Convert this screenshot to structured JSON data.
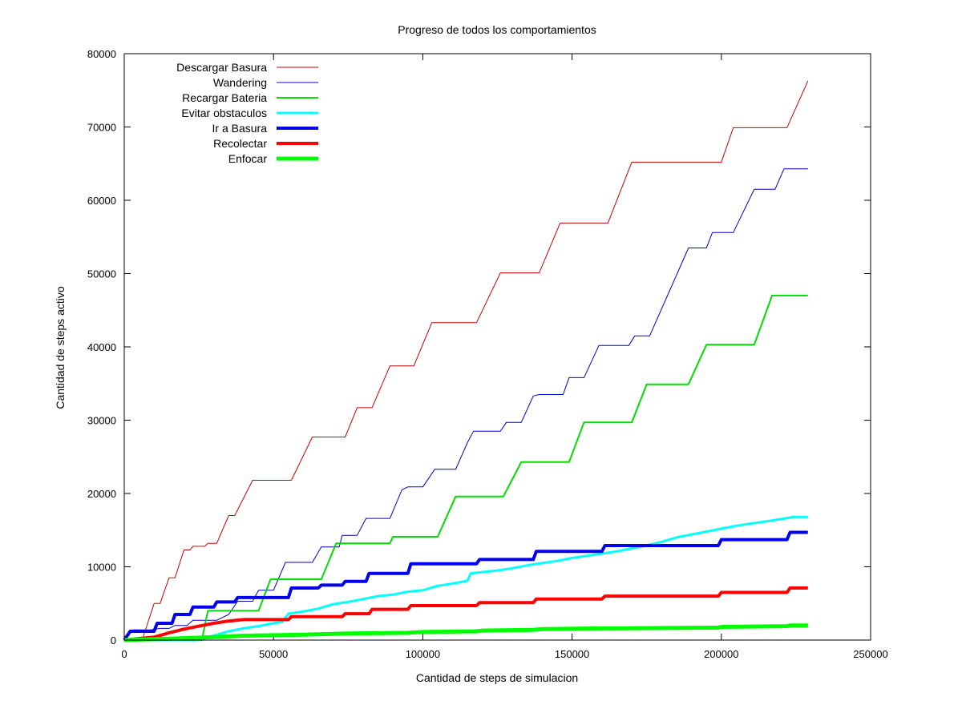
{
  "chart_data": {
    "type": "line",
    "title": "Progreso de todos los comportamientos",
    "xlabel": "Cantidad de steps de simulacion",
    "ylabel": "Cantidad de steps activo",
    "xlim": [
      0,
      250000
    ],
    "ylim": [
      0,
      80000
    ],
    "xticks": [
      0,
      50000,
      100000,
      150000,
      200000,
      250000
    ],
    "yticks": [
      0,
      10000,
      20000,
      30000,
      40000,
      50000,
      60000,
      70000,
      80000
    ],
    "legend_position": "top-left",
    "series": [
      {
        "name": "Descargar Basura",
        "color": "#cc0000",
        "weight": 1,
        "points": [
          [
            0,
            0
          ],
          [
            6000,
            0
          ],
          [
            10000,
            5000
          ],
          [
            12000,
            5000
          ],
          [
            15000,
            8500
          ],
          [
            17000,
            8500
          ],
          [
            20000,
            12300
          ],
          [
            22000,
            12300
          ],
          [
            23000,
            12800
          ],
          [
            27000,
            12800
          ],
          [
            28000,
            13200
          ],
          [
            31000,
            13200
          ],
          [
            35000,
            17000
          ],
          [
            37000,
            17000
          ],
          [
            43000,
            21800
          ],
          [
            56000,
            21800
          ],
          [
            63000,
            27700
          ],
          [
            74000,
            27700
          ],
          [
            78000,
            31700
          ],
          [
            83000,
            31700
          ],
          [
            89000,
            37400
          ],
          [
            97000,
            37400
          ],
          [
            103000,
            43300
          ],
          [
            118000,
            43300
          ],
          [
            126000,
            50100
          ],
          [
            139000,
            50100
          ],
          [
            146000,
            56900
          ],
          [
            162000,
            56900
          ],
          [
            170000,
            65200
          ],
          [
            200000,
            65200
          ],
          [
            204000,
            69900
          ],
          [
            222000,
            69900
          ],
          [
            229000,
            76300
          ]
        ]
      },
      {
        "name": "Wandering",
        "color": "#0000cc",
        "weight": 1,
        "points": [
          [
            0,
            0
          ],
          [
            3000,
            1400
          ],
          [
            9000,
            1400
          ],
          [
            12000,
            1600
          ],
          [
            15000,
            1600
          ],
          [
            17000,
            2000
          ],
          [
            21000,
            2000
          ],
          [
            23000,
            2700
          ],
          [
            31000,
            2700
          ],
          [
            35000,
            3500
          ],
          [
            38000,
            5300
          ],
          [
            43000,
            5300
          ],
          [
            45000,
            6800
          ],
          [
            50000,
            6800
          ],
          [
            54000,
            10600
          ],
          [
            63000,
            10600
          ],
          [
            66000,
            12700
          ],
          [
            72000,
            12700
          ],
          [
            73000,
            14300
          ],
          [
            78000,
            14300
          ],
          [
            81000,
            16600
          ],
          [
            89000,
            16600
          ],
          [
            93000,
            20500
          ],
          [
            95000,
            20900
          ],
          [
            100000,
            20900
          ],
          [
            104000,
            23300
          ],
          [
            111000,
            23300
          ],
          [
            115000,
            27000
          ],
          [
            117000,
            28500
          ],
          [
            126000,
            28500
          ],
          [
            128000,
            29700
          ],
          [
            133000,
            29700
          ],
          [
            137000,
            33300
          ],
          [
            139000,
            33500
          ],
          [
            147000,
            33500
          ],
          [
            149000,
            35800
          ],
          [
            154000,
            35800
          ],
          [
            159000,
            40200
          ],
          [
            169000,
            40200
          ],
          [
            171000,
            41500
          ],
          [
            176000,
            41500
          ],
          [
            189000,
            53500
          ],
          [
            195000,
            53500
          ],
          [
            197000,
            55600
          ],
          [
            204000,
            55600
          ],
          [
            211000,
            61500
          ],
          [
            218000,
            61500
          ],
          [
            221000,
            64300
          ],
          [
            229000,
            64300
          ]
        ]
      },
      {
        "name": "Recargar Bateria",
        "color": "#00dd00",
        "weight": 2,
        "points": [
          [
            0,
            0
          ],
          [
            26000,
            0
          ],
          [
            28000,
            4000
          ],
          [
            45000,
            4000
          ],
          [
            49000,
            8300
          ],
          [
            66000,
            8300
          ],
          [
            71000,
            13200
          ],
          [
            89000,
            13200
          ],
          [
            90000,
            14100
          ],
          [
            105000,
            14100
          ],
          [
            111000,
            19600
          ],
          [
            127000,
            19600
          ],
          [
            133000,
            24300
          ],
          [
            149000,
            24300
          ],
          [
            154000,
            29700
          ],
          [
            170000,
            29700
          ],
          [
            175000,
            34900
          ],
          [
            189000,
            34900
          ],
          [
            195000,
            40300
          ],
          [
            211000,
            40300
          ],
          [
            217000,
            47000
          ],
          [
            229000,
            47000
          ]
        ]
      },
      {
        "name": "Evitar obstaculos",
        "color": "#00ffff",
        "weight": 3,
        "points": [
          [
            0,
            0
          ],
          [
            25000,
            0
          ],
          [
            30000,
            600
          ],
          [
            35000,
            1200
          ],
          [
            40000,
            1600
          ],
          [
            45000,
            1900
          ],
          [
            50000,
            2300
          ],
          [
            53000,
            2500
          ],
          [
            55000,
            3600
          ],
          [
            60000,
            3900
          ],
          [
            65000,
            4300
          ],
          [
            70000,
            4900
          ],
          [
            75000,
            5200
          ],
          [
            80000,
            5600
          ],
          [
            85000,
            6000
          ],
          [
            90000,
            6200
          ],
          [
            95000,
            6600
          ],
          [
            100000,
            6800
          ],
          [
            105000,
            7400
          ],
          [
            110000,
            7700
          ],
          [
            115000,
            8100
          ],
          [
            116000,
            9100
          ],
          [
            125000,
            9500
          ],
          [
            130000,
            9800
          ],
          [
            135000,
            10200
          ],
          [
            140000,
            10500
          ],
          [
            145000,
            10800
          ],
          [
            150000,
            11200
          ],
          [
            155000,
            11500
          ],
          [
            160000,
            11800
          ],
          [
            165000,
            12100
          ],
          [
            170000,
            12500
          ],
          [
            175000,
            12900
          ],
          [
            180000,
            13400
          ],
          [
            185000,
            14000
          ],
          [
            190000,
            14400
          ],
          [
            195000,
            14800
          ],
          [
            200000,
            15200
          ],
          [
            205000,
            15600
          ],
          [
            210000,
            15900
          ],
          [
            215000,
            16200
          ],
          [
            220000,
            16500
          ],
          [
            224000,
            16800
          ],
          [
            229000,
            16800
          ]
        ]
      },
      {
        "name": "Ir a Basura",
        "color": "#0000ee",
        "weight": 4,
        "points": [
          [
            0,
            0
          ],
          [
            2000,
            1200
          ],
          [
            10000,
            1200
          ],
          [
            11000,
            2300
          ],
          [
            16000,
            2300
          ],
          [
            17000,
            3500
          ],
          [
            22000,
            3500
          ],
          [
            23000,
            4500
          ],
          [
            30000,
            4500
          ],
          [
            31000,
            5200
          ],
          [
            37000,
            5200
          ],
          [
            38000,
            5800
          ],
          [
            55000,
            5800
          ],
          [
            56000,
            7100
          ],
          [
            65000,
            7100
          ],
          [
            66000,
            7500
          ],
          [
            73000,
            7500
          ],
          [
            74000,
            8000
          ],
          [
            81000,
            8000
          ],
          [
            82000,
            9100
          ],
          [
            95000,
            9100
          ],
          [
            96000,
            10400
          ],
          [
            118000,
            10400
          ],
          [
            119000,
            11000
          ],
          [
            137000,
            11000
          ],
          [
            138000,
            12100
          ],
          [
            160000,
            12100
          ],
          [
            161000,
            12900
          ],
          [
            199000,
            12900
          ],
          [
            200000,
            13700
          ],
          [
            222000,
            13700
          ],
          [
            223000,
            14700
          ],
          [
            229000,
            14700
          ]
        ]
      },
      {
        "name": "Recolectar",
        "color": "#ff0000",
        "weight": 4,
        "points": [
          [
            0,
            0
          ],
          [
            10000,
            400
          ],
          [
            15000,
            1000
          ],
          [
            20000,
            1500
          ],
          [
            25000,
            1900
          ],
          [
            30000,
            2300
          ],
          [
            35000,
            2600
          ],
          [
            40000,
            2800
          ],
          [
            55000,
            2800
          ],
          [
            56000,
            3200
          ],
          [
            73000,
            3200
          ],
          [
            74000,
            3600
          ],
          [
            82000,
            3600
          ],
          [
            83000,
            4200
          ],
          [
            95000,
            4200
          ],
          [
            96000,
            4700
          ],
          [
            118000,
            4700
          ],
          [
            119000,
            5100
          ],
          [
            137000,
            5100
          ],
          [
            138000,
            5600
          ],
          [
            160000,
            5600
          ],
          [
            161000,
            6000
          ],
          [
            199000,
            6000
          ],
          [
            200000,
            6500
          ],
          [
            222000,
            6500
          ],
          [
            223000,
            7100
          ],
          [
            229000,
            7100
          ]
        ]
      },
      {
        "name": "Enfocar",
        "color": "#00ff00",
        "weight": 5,
        "points": [
          [
            0,
            0
          ],
          [
            15000,
            200
          ],
          [
            30000,
            400
          ],
          [
            40000,
            600
          ],
          [
            55000,
            700
          ],
          [
            65000,
            800
          ],
          [
            75000,
            900
          ],
          [
            95000,
            1000
          ],
          [
            100000,
            1100
          ],
          [
            118000,
            1200
          ],
          [
            120000,
            1300
          ],
          [
            137000,
            1400
          ],
          [
            140000,
            1500
          ],
          [
            160000,
            1600
          ],
          [
            199000,
            1700
          ],
          [
            200000,
            1800
          ],
          [
            222000,
            1900
          ],
          [
            223000,
            2000
          ],
          [
            229000,
            2000
          ]
        ]
      }
    ]
  }
}
